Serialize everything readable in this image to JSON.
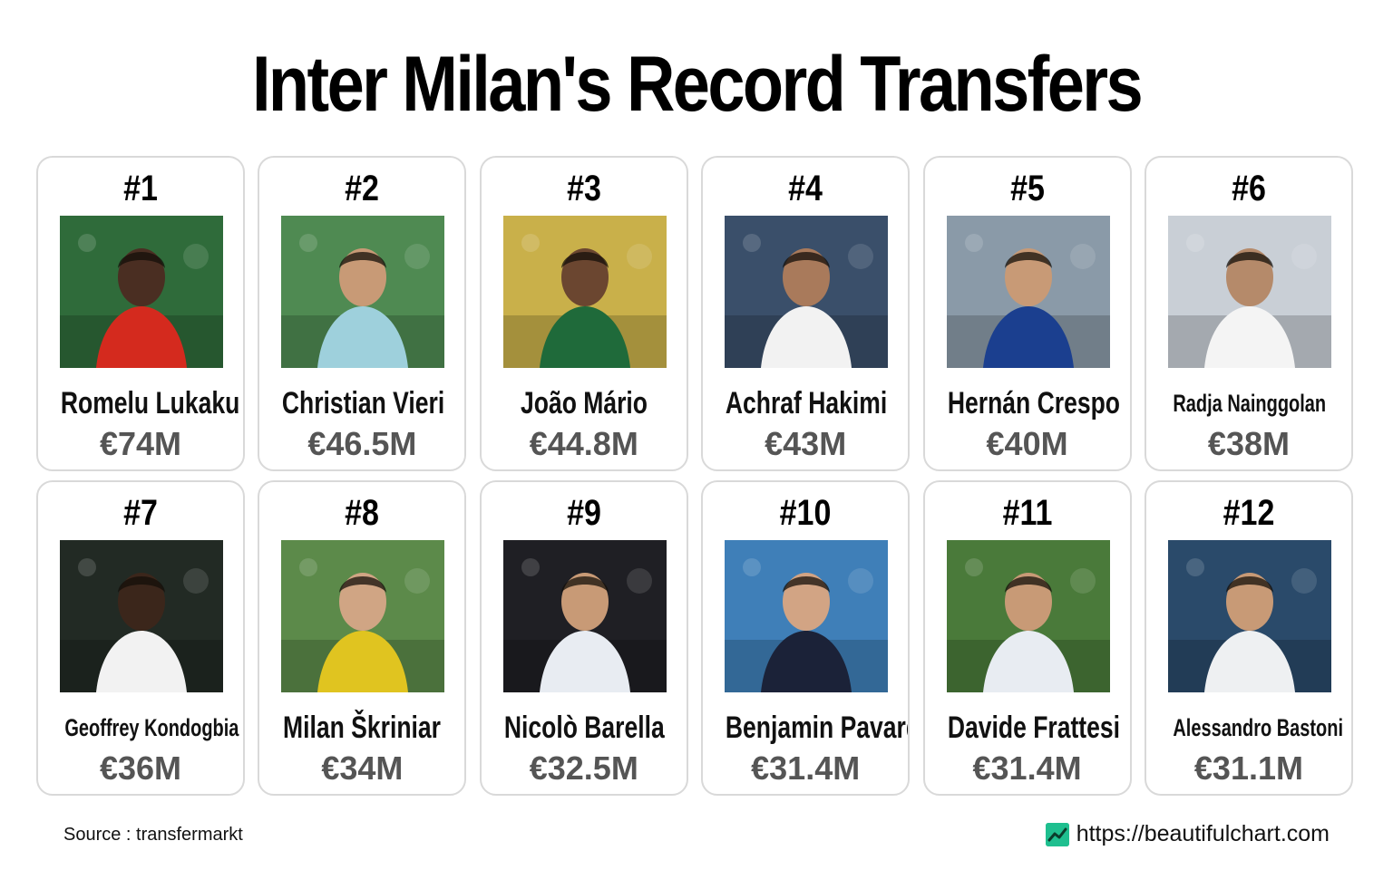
{
  "title": "Inter Milan's Record Transfers",
  "players": [
    {
      "rank": "#1",
      "name": "Romelu Lukaku",
      "fee": "€74M",
      "photo": "romelu-lukaku-photo",
      "bg": "#2f6b3a",
      "kit": "#d42a1e",
      "skin": "#4a2e22"
    },
    {
      "rank": "#2",
      "name": "Christian Vieri",
      "fee": "€46.5M",
      "photo": "christian-vieri-photo",
      "bg": "#4f8a52",
      "kit": "#9ed0dc",
      "skin": "#c89a76"
    },
    {
      "rank": "#3",
      "name": "João Mário",
      "fee": "€44.8M",
      "photo": "joao-mario-photo",
      "bg": "#c9b04a",
      "kit": "#1f6a3a",
      "skin": "#6b4630"
    },
    {
      "rank": "#4",
      "name": "Achraf Hakimi",
      "fee": "€43M",
      "photo": "achraf-hakimi-photo",
      "bg": "#3a4f6a",
      "kit": "#f2f2f2",
      "skin": "#a97a5b"
    },
    {
      "rank": "#5",
      "name": "Hernán Crespo",
      "fee": "€40M",
      "photo": "hernan-crespo-photo",
      "bg": "#8a9aa8",
      "kit": "#1b3f8f",
      "skin": "#c89a76"
    },
    {
      "rank": "#6",
      "name": "Radja Nainggolan",
      "fee": "€38M",
      "photo": "radja-nainggolan-photo",
      "bg": "#c9cfd6",
      "kit": "#f4f4f4",
      "skin": "#b58a6a"
    },
    {
      "rank": "#7",
      "name": "Geoffrey Kondogbia",
      "fee": "€36M",
      "photo": "geoffrey-kondogbia-photo",
      "bg": "#222a24",
      "kit": "#f2f2f2",
      "skin": "#3b261b"
    },
    {
      "rank": "#8",
      "name": "Milan Škriniar",
      "fee": "€34M",
      "photo": "milan-skriniar-photo",
      "bg": "#5c8a4a",
      "kit": "#e0c420",
      "skin": "#d0a584"
    },
    {
      "rank": "#9",
      "name": "Nicolò Barella",
      "fee": "€32.5M",
      "photo": "nicolo-barella-photo",
      "bg": "#1f1f24",
      "kit": "#e8ecf2",
      "skin": "#c89a76"
    },
    {
      "rank": "#10",
      "name": "Benjamin Pavard",
      "fee": "€31.4M",
      "photo": "benjamin-pavard-photo",
      "bg": "#3f7fb8",
      "kit": "#1b2238",
      "skin": "#d2a484"
    },
    {
      "rank": "#11",
      "name": "Davide Frattesi",
      "fee": "€31.4M",
      "photo": "davide-frattesi-photo",
      "bg": "#4a7a3a",
      "kit": "#e8ecf2",
      "skin": "#c89a76"
    },
    {
      "rank": "#12",
      "name": "Alessandro Bastoni",
      "fee": "€31.1M",
      "photo": "alessandro-bastoni-photo",
      "bg": "#2a4a6a",
      "kit": "#eef0f2",
      "skin": "#c89a76"
    }
  ],
  "footer": {
    "source": "Source : transfermarkt",
    "url": "https://beautifulchart.com",
    "icon": "chart-logo-icon",
    "icon_color": "#1fbf8f"
  }
}
